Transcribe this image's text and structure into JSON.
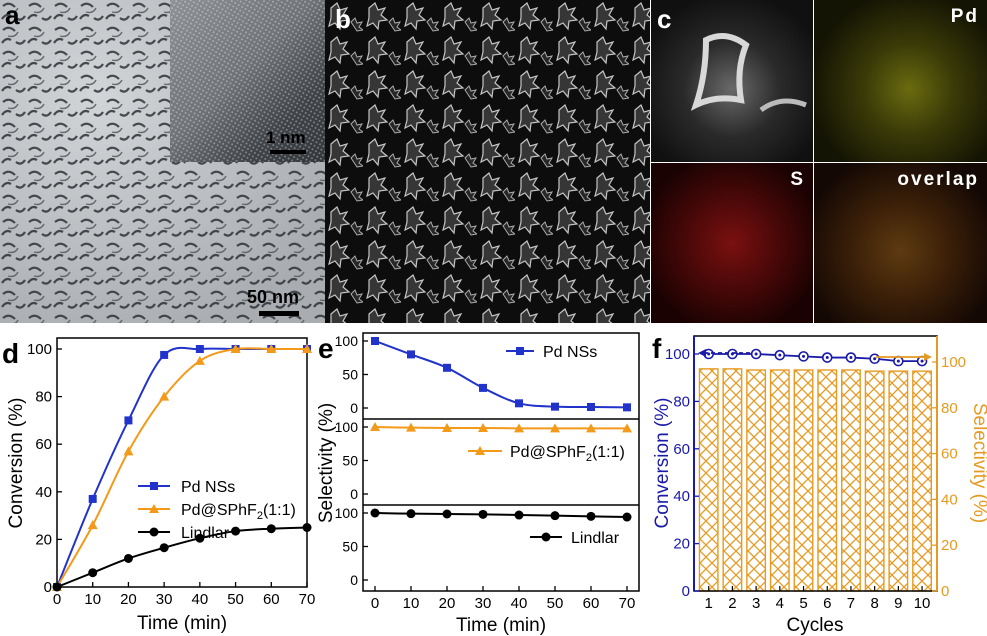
{
  "panels": {
    "a": {
      "label": "a",
      "scale_main": "50 nm",
      "scale_inset": "1 nm"
    },
    "b": {
      "label": "b"
    },
    "c": {
      "label": "c",
      "maps": [
        "Pd",
        "S",
        "overlap"
      ]
    },
    "d": {
      "label": "d"
    },
    "e": {
      "label": "e"
    },
    "f": {
      "label": "f"
    }
  },
  "colors": {
    "pd": "#2233cc",
    "pdsp": "#f39a1a",
    "lindlar": "#000000",
    "conv": "#1a1aaa",
    "sel": "#e69a22"
  },
  "chart_data": [
    {
      "id": "d",
      "type": "line",
      "xlabel": "Time (min)",
      "ylabel": "Conversion (%)",
      "xlim": [
        0,
        70
      ],
      "ylim": [
        0,
        100
      ],
      "xticks": [
        0,
        10,
        20,
        30,
        40,
        50,
        60,
        70
      ],
      "yticks": [
        0,
        20,
        40,
        60,
        80,
        100
      ],
      "x": [
        0,
        10,
        20,
        30,
        40,
        50,
        60,
        70
      ],
      "series": [
        {
          "name": "Pd NSs",
          "marker": "square",
          "values": [
            0,
            37,
            70,
            97.5,
            100,
            100,
            100,
            100
          ]
        },
        {
          "name_main": "Pd@SPhF",
          "name_sub": "2",
          "name_suffix": "(1:1)",
          "marker": "triangle",
          "values": [
            0,
            26,
            57,
            80,
            95,
            100,
            100,
            100
          ]
        },
        {
          "name": "Lindlar",
          "marker": "circle",
          "values": [
            0,
            6,
            12,
            16.5,
            20.5,
            23.5,
            24.5,
            25
          ]
        }
      ],
      "legend": "center-right"
    },
    {
      "id": "e",
      "type": "line",
      "xlabel": "Time (min)",
      "ylabel": "Selectivity (%)",
      "xlim": [
        0,
        70
      ],
      "xticks": [
        0,
        10,
        20,
        30,
        40,
        50,
        60,
        70
      ],
      "x": [
        0,
        10,
        20,
        30,
        40,
        50,
        60,
        70
      ],
      "ylim": [
        0,
        100
      ],
      "yticks": [
        0,
        50,
        100
      ],
      "series": [
        {
          "name": "Pd NSs",
          "marker": "square",
          "values": [
            100,
            80,
            60,
            30,
            7,
            2,
            1.5,
            1
          ]
        },
        {
          "name_main": "Pd@SPhF",
          "name_sub": "2",
          "name_suffix": "(1:1)",
          "marker": "triangle",
          "values": [
            100,
            99,
            98.5,
            98.5,
            98,
            98,
            98,
            98
          ]
        },
        {
          "name": "Lindlar",
          "marker": "circle",
          "values": [
            100,
            99,
            98.5,
            98,
            97,
            96,
            95,
            94
          ]
        }
      ],
      "layout": "three stacked sub-panels"
    },
    {
      "id": "f",
      "type": "bar",
      "xlabel": "Cycles",
      "ylabel_left": "Conversion (%)",
      "ylabel_right": "Selectivity (%)",
      "categories": [
        "1",
        "2",
        "3",
        "4",
        "5",
        "6",
        "7",
        "8",
        "9",
        "10"
      ],
      "conversion": [
        100,
        100,
        100,
        99.5,
        99,
        98.5,
        98.5,
        98,
        97,
        97
      ],
      "selectivity": [
        97,
        97,
        96.5,
        96.5,
        96.5,
        96.5,
        96.5,
        96,
        96,
        96
      ],
      "ylim_left": [
        0,
        100
      ],
      "yticks_left": [
        0,
        20,
        40,
        60,
        80,
        100
      ],
      "ylim_right": [
        0,
        100
      ],
      "yticks_right": [
        0,
        20,
        40,
        60,
        80,
        100
      ]
    }
  ]
}
